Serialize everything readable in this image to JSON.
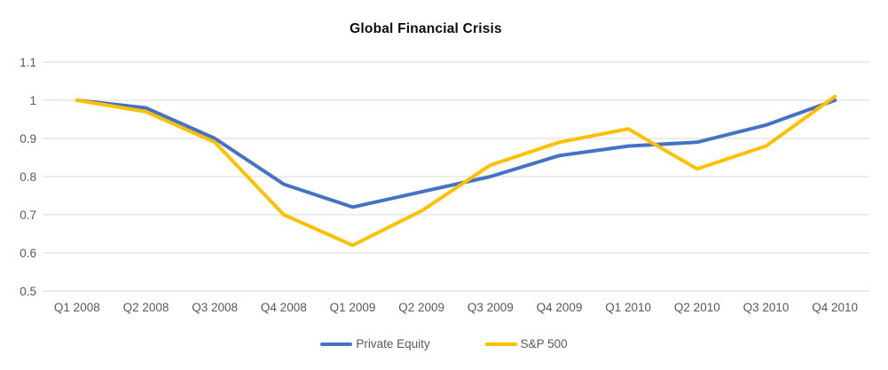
{
  "chart": {
    "title": "Global Financial Crisis"
  },
  "chart_data": {
    "type": "line",
    "title": "Global Financial Crisis",
    "categories": [
      "Q1 2008",
      "Q2 2008",
      "Q3 2008",
      "Q4 2008",
      "Q1 2009",
      "Q2 2009",
      "Q3 2009",
      "Q4 2009",
      "Q1 2010",
      "Q2 2010",
      "Q3 2010",
      "Q4 2010"
    ],
    "series": [
      {
        "name": "Private Equity",
        "color": "#4472C4",
        "values": [
          1.0,
          0.98,
          0.9,
          0.78,
          0.72,
          0.76,
          0.8,
          0.855,
          0.88,
          0.89,
          0.935,
          1.0
        ]
      },
      {
        "name": "S&P 500",
        "color": "#FFC000",
        "values": [
          1.0,
          0.97,
          0.89,
          0.7,
          0.62,
          0.71,
          0.83,
          0.89,
          0.925,
          0.82,
          0.88,
          1.01
        ]
      }
    ],
    "xlabel": "",
    "ylabel": "",
    "ylim": [
      0.5,
      1.1
    ],
    "yticks": [
      1.1,
      1.0,
      0.9,
      0.8,
      0.7,
      0.6,
      0.5
    ],
    "ytick_labels": [
      "1.1",
      "1",
      "0.9",
      "0.8",
      "0.7",
      "0.6",
      "0.5"
    ],
    "grid": "horizontal",
    "legend_position": "bottom",
    "colors": {
      "grid": "#D9D9D9",
      "axis_text": "#595959",
      "title_text": "#0d0d0d",
      "background": "#FFFFFF"
    }
  },
  "legend": {
    "items": [
      {
        "label": "Private Equity",
        "color": "#4472C4"
      },
      {
        "label": "S&P 500",
        "color": "#FFC000"
      }
    ]
  }
}
